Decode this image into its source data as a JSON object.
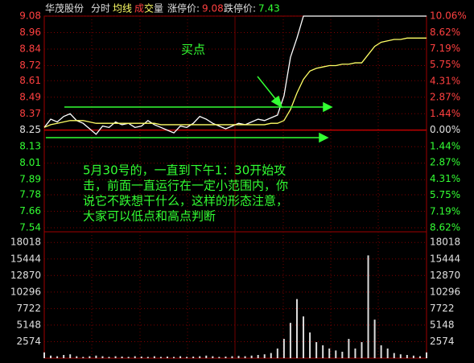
{
  "header": {
    "name": "华茂股份",
    "mode": "分时",
    "avg": "均线",
    "volume_chars": [
      "成",
      "交",
      "量"
    ],
    "limit_up_label": "涨停价:",
    "limit_up": 9.08,
    "limit_down_label": "跌停价:",
    "limit_down": 7.43
  },
  "annotations": {
    "buy": "买点",
    "note": [
      "5月30号的，一直到下午1：30开始攻",
      "击，前面一直运行在一定小范围内，你",
      "说它不跌想干什么，这样的形态注意，",
      "大家可以低点和高点判断"
    ]
  },
  "chart_data": [
    {
      "type": "line",
      "ylim": [
        7.54,
        9.08
      ],
      "yticks": [
        9.08,
        8.96,
        8.84,
        8.72,
        8.61,
        8.49,
        8.37,
        8.25,
        8.13,
        8.01,
        7.89,
        7.78,
        7.66,
        7.54
      ],
      "y2lim": [
        -8.62,
        10.06
      ],
      "y2ticks": [
        {
          "value": 10.06,
          "label": "10.06%"
        },
        {
          "value": 8.62,
          "label": "8.62%"
        },
        {
          "value": 7.19,
          "label": "7.19%"
        },
        {
          "value": 5.75,
          "label": "5.75%"
        },
        {
          "value": 4.31,
          "label": "4.31%"
        },
        {
          "value": 2.87,
          "label": "2.87%"
        },
        {
          "value": 1.44,
          "label": "1.44%"
        },
        {
          "value": 0,
          "label": "0.00%"
        },
        {
          "value": -1.44,
          "label": "1.44%"
        },
        {
          "value": -2.87,
          "label": "2.87%"
        },
        {
          "value": -4.31,
          "label": "4.31%"
        },
        {
          "value": -5.75,
          "label": "5.75%"
        },
        {
          "value": -7.19,
          "label": "7.19%"
        },
        {
          "value": -8.62,
          "label": "8.62%"
        }
      ],
      "grid": true,
      "series": [
        {
          "color": "#ffffff",
          "values": [
            8.27,
            8.33,
            8.31,
            8.35,
            8.37,
            8.32,
            8.3,
            8.26,
            8.22,
            8.28,
            8.27,
            8.31,
            8.29,
            8.3,
            8.27,
            8.28,
            8.32,
            8.29,
            8.27,
            8.25,
            8.23,
            8.28,
            8.27,
            8.3,
            8.35,
            8.33,
            8.3,
            8.28,
            8.26,
            8.28,
            8.3,
            8.29,
            8.31,
            8.33,
            8.32,
            8.34,
            8.36,
            8.5,
            8.78,
            8.92,
            9.08,
            9.08,
            9.08,
            9.08,
            9.08,
            9.08,
            9.08,
            9.08,
            9.08,
            9.08,
            9.08,
            9.08,
            9.08,
            9.08,
            9.08,
            9.08,
            9.08,
            9.08,
            9.08,
            9.08
          ]
        },
        {
          "color": "#ffff66",
          "values": [
            8.27,
            8.29,
            8.3,
            8.31,
            8.32,
            8.32,
            8.32,
            8.31,
            8.3,
            8.3,
            8.3,
            8.3,
            8.3,
            8.3,
            8.3,
            8.3,
            8.3,
            8.3,
            8.29,
            8.29,
            8.29,
            8.29,
            8.29,
            8.29,
            8.29,
            8.29,
            8.29,
            8.29,
            8.29,
            8.29,
            8.29,
            8.29,
            8.29,
            8.29,
            8.29,
            8.3,
            8.3,
            8.32,
            8.4,
            8.52,
            8.62,
            8.68,
            8.7,
            8.71,
            8.72,
            8.72,
            8.73,
            8.73,
            8.74,
            8.74,
            8.8,
            8.86,
            8.89,
            8.9,
            8.91,
            8.91,
            8.92,
            8.92,
            8.92,
            8.92
          ]
        }
      ]
    },
    {
      "type": "bar",
      "ylim": [
        0,
        19300
      ],
      "yticks": [
        18018,
        15444,
        12870,
        10296,
        7722,
        5148,
        2574
      ],
      "color": "#dddddd",
      "values": [
        900,
        400,
        300,
        500,
        600,
        300,
        200,
        300,
        400,
        300,
        200,
        300,
        250,
        200,
        300,
        250,
        200,
        300,
        200,
        250,
        200,
        300,
        200,
        250,
        300,
        400,
        300,
        200,
        250,
        300,
        350,
        300,
        400,
        500,
        600,
        800,
        1500,
        3000,
        5500,
        9200,
        6500,
        4000,
        2500,
        2000,
        1500,
        1200,
        1000,
        3000,
        1500,
        2500,
        16000,
        6000,
        2000,
        1500,
        800,
        600,
        500,
        400,
        300,
        900
      ]
    }
  ]
}
